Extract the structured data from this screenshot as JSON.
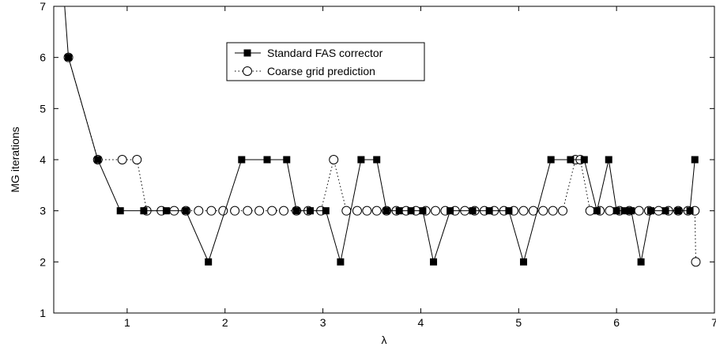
{
  "chart_data": {
    "type": "line",
    "xlabel": "λ",
    "ylabel": "MG iterations",
    "xlim": [
      0.25,
      7
    ],
    "ylim": [
      1,
      7
    ],
    "xticks": [
      1,
      2,
      3,
      4,
      5,
      6,
      7
    ],
    "yticks": [
      1,
      2,
      3,
      4,
      5,
      6,
      7
    ],
    "grid": false,
    "legend_position": "top-center",
    "series": [
      {
        "name": "Standard FAS corrector",
        "marker": "filled-square",
        "line": "solid",
        "color": "#000000",
        "x": [
          0.35,
          0.4,
          0.7,
          0.93,
          1.17,
          1.4,
          1.6,
          1.83,
          2.17,
          2.43,
          2.63,
          2.73,
          2.87,
          3.03,
          3.18,
          3.39,
          3.55,
          3.65,
          3.78,
          3.9,
          4.02,
          4.13,
          4.3,
          4.53,
          4.7,
          4.9,
          5.05,
          5.33,
          5.53,
          5.67,
          5.8,
          5.92,
          6.0,
          6.08,
          6.15,
          6.25,
          6.35,
          6.5,
          6.63,
          6.75,
          6.8
        ],
        "y": [
          7.3,
          6,
          4,
          3,
          3,
          3,
          3,
          2,
          4,
          4,
          4,
          3,
          3,
          3,
          2,
          4,
          4,
          3,
          3,
          3,
          3,
          2,
          3,
          3,
          3,
          3,
          2,
          4,
          4,
          4,
          3,
          4,
          3,
          3,
          3,
          2,
          3,
          3,
          3,
          3,
          4
        ]
      },
      {
        "name": "Coarse grid prediction",
        "marker": "open-circle",
        "line": "dotted",
        "color": "#000000",
        "x": [
          0.4,
          0.7,
          0.95,
          1.1,
          1.2,
          1.35,
          1.48,
          1.6,
          1.73,
          1.86,
          1.98,
          2.1,
          2.23,
          2.35,
          2.48,
          2.6,
          2.73,
          2.85,
          2.98,
          3.11,
          3.24,
          3.35,
          3.45,
          3.55,
          3.65,
          3.75,
          3.85,
          3.95,
          4.05,
          4.15,
          4.25,
          4.35,
          4.45,
          4.55,
          4.65,
          4.75,
          4.85,
          4.95,
          5.05,
          5.15,
          5.25,
          5.35,
          5.45,
          5.58,
          5.63,
          5.73,
          5.83,
          5.93,
          6.03,
          6.13,
          6.23,
          6.33,
          6.43,
          6.53,
          6.63,
          6.73,
          6.8,
          6.81
        ],
        "y": [
          6,
          4,
          4,
          4,
          3,
          3,
          3,
          3,
          3,
          3,
          3,
          3,
          3,
          3,
          3,
          3,
          3,
          3,
          3,
          4,
          3,
          3,
          3,
          3,
          3,
          3,
          3,
          3,
          3,
          3,
          3,
          3,
          3,
          3,
          3,
          3,
          3,
          3,
          3,
          3,
          3,
          3,
          3,
          4,
          4,
          3,
          3,
          3,
          3,
          3,
          3,
          3,
          3,
          3,
          3,
          3,
          3,
          2
        ]
      }
    ]
  }
}
